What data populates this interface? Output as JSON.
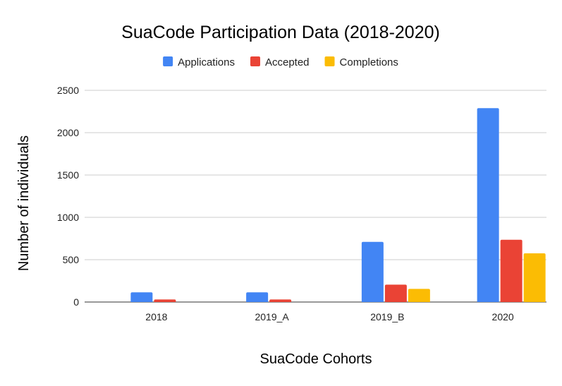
{
  "chart_data": {
    "type": "bar",
    "title": "SuaCode Participation Data (2018-2020)",
    "xlabel": "SuaCode Cohorts",
    "ylabel": "Number of individuals",
    "categories": [
      "2018",
      "2019_A",
      "2019_B",
      "2020"
    ],
    "series": [
      {
        "name": "Applications",
        "color": "#4285f4",
        "values": [
          115,
          115,
          710,
          2290
        ]
      },
      {
        "name": "Accepted",
        "color": "#ea4335",
        "values": [
          30,
          30,
          205,
          735
        ]
      },
      {
        "name": "Completions",
        "color": "#fbbc04",
        "values": [
          0,
          0,
          155,
          575
        ]
      }
    ],
    "ylim": [
      0,
      2500
    ],
    "yticks": [
      0,
      500,
      1000,
      1500,
      2000,
      2500
    ],
    "grid": true,
    "legend_position": "top"
  }
}
